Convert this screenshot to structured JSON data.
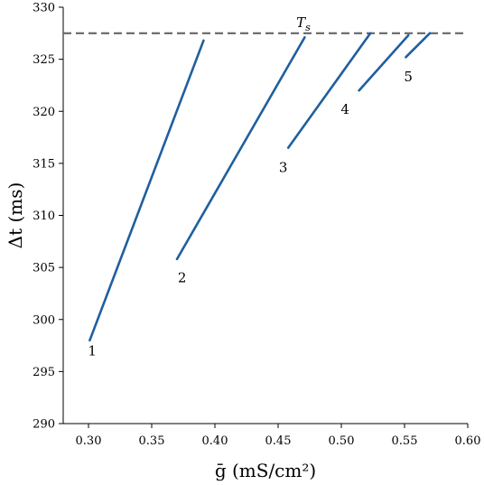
{
  "chart_data": {
    "type": "line",
    "xlabel": "ḡ (mS/cm²)",
    "ylabel": "Δt (ms)",
    "xlim": [
      0.28,
      0.6
    ],
    "ylim": [
      290,
      330
    ],
    "x_ticks": [
      0.3,
      0.35,
      0.4,
      0.45,
      0.5,
      0.55,
      0.6
    ],
    "x_tick_labels": [
      "0.30",
      "0.35",
      "0.40",
      "0.45",
      "0.50",
      "0.55",
      "0.60"
    ],
    "y_ticks": [
      290,
      295,
      300,
      305,
      310,
      315,
      320,
      325,
      330
    ],
    "y_tick_labels": [
      "290",
      "295",
      "300",
      "305",
      "310",
      "315",
      "320",
      "325",
      "330"
    ],
    "reference_line": {
      "label": "T_s",
      "y": 327.5,
      "style": "dashed",
      "color": "#666666"
    },
    "series_color": "#1f5f9e",
    "series": [
      {
        "label": "1",
        "x": [
          0.301,
          0.391
        ],
        "y": [
          298.0,
          326.8
        ]
      },
      {
        "label": "2",
        "x": [
          0.37,
          0.471
        ],
        "y": [
          305.8,
          327.1
        ]
      },
      {
        "label": "3",
        "x": [
          0.458,
          0.523
        ],
        "y": [
          316.5,
          327.5
        ]
      },
      {
        "label": "4",
        "x": [
          0.514,
          0.553
        ],
        "y": [
          322.0,
          327.3
        ]
      },
      {
        "label": "5",
        "x": [
          0.551,
          0.57
        ],
        "y": [
          325.2,
          327.5
        ]
      }
    ],
    "series_label_positions": [
      {
        "label": "1",
        "x": 0.303,
        "y": 297.0
      },
      {
        "label": "2",
        "x": 0.374,
        "y": 304.0
      },
      {
        "label": "3",
        "x": 0.454,
        "y": 314.6
      },
      {
        "label": "4",
        "x": 0.503,
        "y": 320.2
      },
      {
        "label": "5",
        "x": 0.553,
        "y": 323.3
      }
    ],
    "grid": false
  }
}
